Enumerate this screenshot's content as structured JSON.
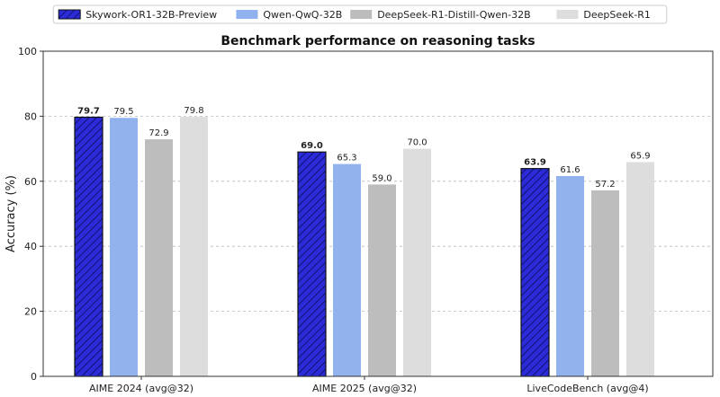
{
  "chart_data": {
    "type": "bar",
    "title": "Benchmark performance on reasoning tasks",
    "xlabel": "",
    "ylabel": "Accuracy (%)",
    "ylim": [
      0,
      100
    ],
    "yticks": [
      0,
      20,
      40,
      60,
      80,
      100
    ],
    "grid": true,
    "legend_position": "top-center",
    "categories": [
      "AIME 2024 (avg@32)",
      "AIME 2025 (avg@32)",
      "LiveCodeBench (avg@4)"
    ],
    "series": [
      {
        "name": "Skywork-OR1-32B-Preview",
        "color": "#2b2bd9",
        "hatched": true,
        "bold_labels": true,
        "values": [
          79.7,
          69.0,
          63.9
        ]
      },
      {
        "name": "Qwen-QwQ-32B",
        "color": "#92b2ee",
        "hatched": false,
        "bold_labels": false,
        "values": [
          79.5,
          65.3,
          61.6
        ]
      },
      {
        "name": "DeepSeek-R1-Distill-Qwen-32B",
        "color": "#bdbdbd",
        "hatched": false,
        "bold_labels": false,
        "values": [
          72.9,
          59.0,
          57.2
        ]
      },
      {
        "name": "DeepSeek-R1",
        "color": "#dddddd",
        "hatched": false,
        "bold_labels": false,
        "values": [
          79.8,
          70.0,
          65.9
        ]
      }
    ]
  }
}
